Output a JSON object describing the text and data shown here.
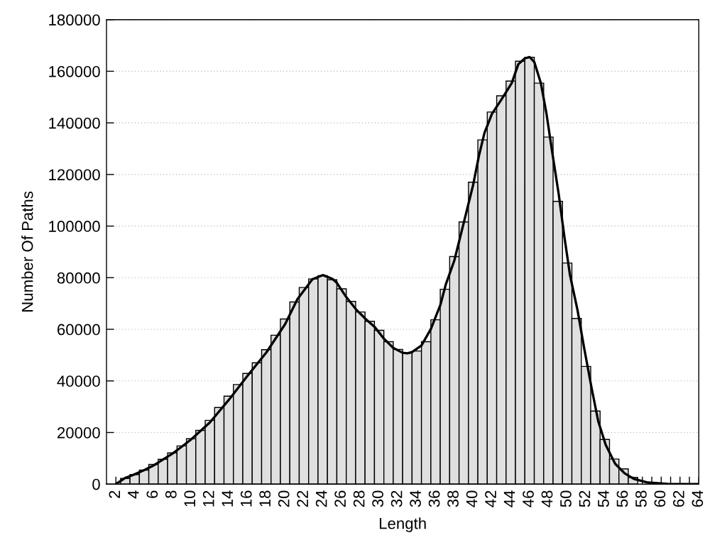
{
  "chart_data": {
    "type": "bar",
    "xlabel": "Length",
    "ylabel": "Number Of Paths",
    "series": [
      {
        "color": "#e0e0e0",
        "x": [
          3,
          4,
          5,
          6,
          7,
          8,
          9,
          10,
          11,
          12,
          13,
          14,
          15,
          16,
          17,
          18,
          19,
          20,
          21,
          22,
          23,
          24,
          25,
          26,
          27,
          28,
          29,
          30,
          31,
          32,
          33,
          34,
          35,
          36,
          37,
          38,
          39,
          40,
          41,
          42,
          43,
          44,
          45,
          46,
          47,
          48,
          49,
          50,
          51,
          52,
          53,
          54,
          55,
          56,
          57
        ],
        "values": [
          2200,
          3700,
          5400,
          7600,
          9600,
          12100,
          14800,
          17600,
          20800,
          24700,
          29700,
          34100,
          38600,
          42900,
          47000,
          52100,
          57700,
          64000,
          70600,
          76200,
          79500,
          80800,
          79200,
          75700,
          70800,
          66700,
          63100,
          59600,
          55200,
          52200,
          50800,
          51600,
          55200,
          63700,
          75500,
          88200,
          101600,
          117000,
          133400,
          144200,
          150500,
          156200,
          163900,
          165400,
          155400,
          134500,
          109600,
          85700,
          64200,
          45600,
          28300,
          17300,
          9700,
          5900,
          2600
        ]
      },
      {
        "type": "line",
        "color": "#000000",
        "x": [
          2,
          3,
          4,
          5,
          6,
          7,
          8,
          9,
          10,
          12,
          14,
          16,
          18,
          20,
          21.3,
          22.9,
          24,
          25,
          25.5,
          26.5,
          27.5,
          28.5,
          29.5,
          30.5,
          31.5,
          32.5,
          33,
          33.5,
          34.5,
          35.5,
          36.5,
          37.1,
          38,
          39,
          40,
          40.6,
          41.2,
          42,
          43,
          44.1,
          44.8,
          45.5,
          46,
          46.5,
          47.2,
          47.8,
          48.4,
          49.1,
          49.7,
          50.3,
          51.1,
          51.8,
          52.6,
          53.3,
          54.1,
          55.1,
          56.1,
          57.1,
          58.6,
          60.7,
          64
        ],
        "values": [
          0,
          2400,
          3800,
          5400,
          7200,
          9500,
          11800,
          14500,
          17300,
          23900,
          32600,
          42000,
          51000,
          62000,
          71600,
          79400,
          81000,
          79600,
          78000,
          72500,
          67900,
          64200,
          61000,
          56400,
          52800,
          50900,
          50700,
          51200,
          53700,
          60100,
          69300,
          77500,
          86700,
          101300,
          116000,
          127000,
          136100,
          143500,
          149000,
          155400,
          162700,
          165000,
          165500,
          163600,
          155400,
          143500,
          128800,
          112300,
          95900,
          81000,
          67400,
          52800,
          37200,
          24400,
          15200,
          7900,
          4200,
          2000,
          600,
          100,
          0
        ]
      }
    ],
    "xlim": [
      1,
      64
    ],
    "xticks": [
      2,
      {
        "value": 3,
        "label": null
      },
      4,
      {
        "value": 5,
        "label": null
      },
      6,
      {
        "value": 7,
        "label": null
      },
      8,
      {
        "value": 9,
        "label": null
      },
      10,
      {
        "value": 11,
        "label": null
      },
      12,
      {
        "value": 13,
        "label": null
      },
      14,
      {
        "value": 15,
        "label": null
      },
      16,
      {
        "value": 17,
        "label": null
      },
      18,
      {
        "value": 19,
        "label": null
      },
      20,
      {
        "value": 21,
        "label": null
      },
      22,
      {
        "value": 23,
        "label": null
      },
      24,
      {
        "value": 25,
        "label": null
      },
      26,
      {
        "value": 27,
        "label": null
      },
      28,
      {
        "value": 29,
        "label": null
      },
      30,
      {
        "value": 31,
        "label": null
      },
      32,
      {
        "value": 33,
        "label": null
      },
      34,
      {
        "value": 35,
        "label": null
      },
      36,
      {
        "value": 37,
        "label": null
      },
      38,
      {
        "value": 39,
        "label": null
      },
      40,
      {
        "value": 41,
        "label": null
      },
      42,
      {
        "value": 43,
        "label": null
      },
      44,
      {
        "value": 45,
        "label": null
      },
      46,
      {
        "value": 47,
        "label": null
      },
      48,
      {
        "value": 49,
        "label": null
      },
      50,
      {
        "value": 51,
        "label": null
      },
      52,
      {
        "value": 53,
        "label": null
      },
      54,
      {
        "value": 55,
        "label": null
      },
      56,
      {
        "value": 57,
        "label": null
      },
      58,
      {
        "value": 59,
        "label": null
      },
      60,
      {
        "value": 61,
        "label": null
      },
      62,
      {
        "value": 63,
        "label": null
      },
      64
    ],
    "ylim": [
      0,
      180000
    ],
    "yticks": [
      0,
      20000,
      40000,
      60000,
      80000,
      100000,
      120000,
      140000,
      160000,
      180000
    ],
    "grid": "y"
  }
}
